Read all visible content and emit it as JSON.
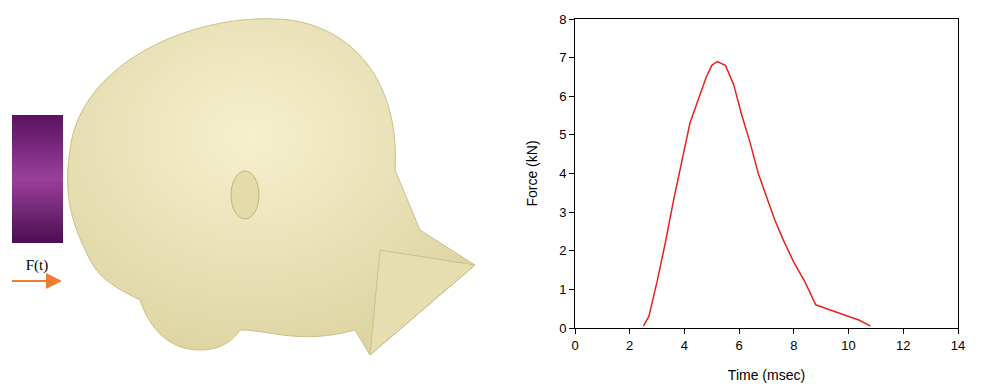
{
  "diagram": {
    "load_label": "F(t)"
  },
  "chart_data": {
    "type": "line",
    "x_label": "Time (msec)",
    "y_label": "Force (kN)",
    "color": "#e8231f",
    "x": [
      2.5,
      2.7,
      3.0,
      3.3,
      3.6,
      3.9,
      4.2,
      4.5,
      4.8,
      5.0,
      5.2,
      5.5,
      5.8,
      6.1,
      6.4,
      6.7,
      7.0,
      7.3,
      7.6,
      8.0,
      8.4,
      8.8,
      9.2,
      9.6,
      10.0,
      10.4,
      10.8
    ],
    "values": [
      0.05,
      0.3,
      1.2,
      2.2,
      3.3,
      4.3,
      5.3,
      5.9,
      6.5,
      6.8,
      6.9,
      6.8,
      6.3,
      5.5,
      4.8,
      4.0,
      3.4,
      2.8,
      2.3,
      1.7,
      1.2,
      0.6,
      0.5,
      0.4,
      0.3,
      0.2,
      0.05
    ],
    "xlim": [
      0,
      14
    ],
    "xticks": [
      0,
      2,
      4,
      6,
      8,
      10,
      12,
      14
    ],
    "ylim": [
      0,
      8
    ],
    "yticks": [
      0,
      1,
      2,
      3,
      4,
      5,
      6,
      7,
      8
    ],
    "grid": false
  }
}
